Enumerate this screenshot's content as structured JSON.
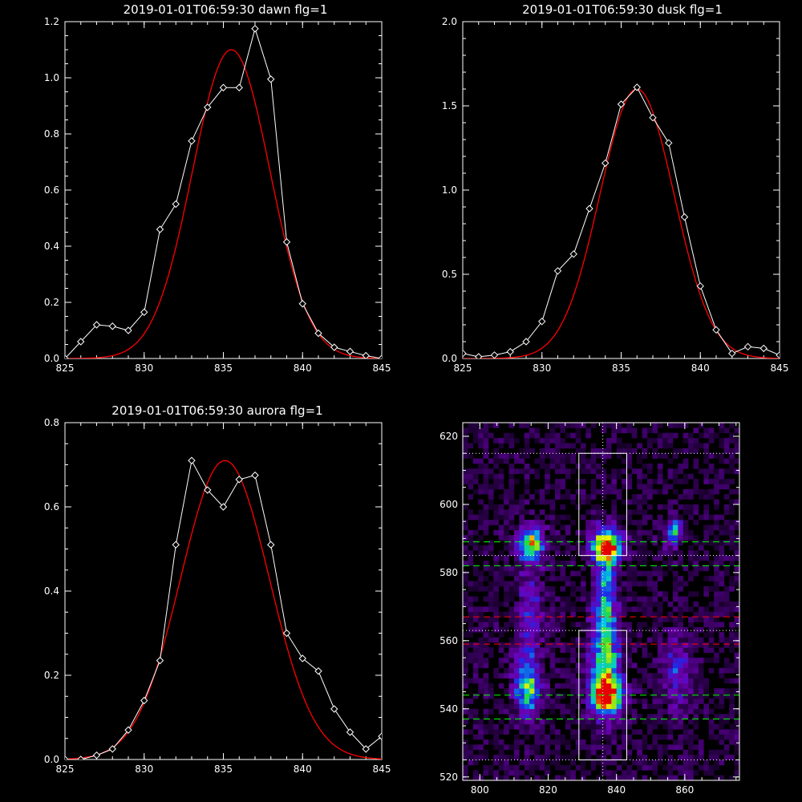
{
  "chart_data": [
    {
      "type": "line",
      "title": "2019-01-01T06:59:30 dawn flg=1",
      "xlim": [
        825,
        845
      ],
      "ylim": [
        0,
        1.2
      ],
      "xticks": [
        "825",
        "830",
        "835",
        "840",
        "845"
      ],
      "yticks": [
        "0.0",
        "0.2",
        "0.4",
        "0.6",
        "0.8",
        "1.0",
        "1.2"
      ],
      "series": [
        {
          "color": "#ffffff",
          "marker": "diamond",
          "x": [
            825,
            826,
            827,
            828,
            829,
            830,
            831,
            832,
            833,
            834,
            835,
            836,
            837,
            838,
            839,
            840,
            841,
            842,
            843,
            844,
            845
          ],
          "y": [
            0.0,
            0.06,
            0.12,
            0.115,
            0.1,
            0.165,
            0.46,
            0.55,
            0.775,
            0.895,
            0.965,
            0.965,
            1.175,
            0.995,
            0.415,
            0.195,
            0.09,
            0.04,
            0.025,
            0.01,
            0.0
          ]
        },
        {
          "color": "#ff0000",
          "fit": {
            "amplitude": 1.1,
            "center": 835.5,
            "sigma": 2.45
          }
        }
      ]
    },
    {
      "type": "line",
      "title": "2019-01-01T06:59:30 dusk flg=1",
      "xlim": [
        825,
        845
      ],
      "ylim": [
        0,
        2.0
      ],
      "xticks": [
        "825",
        "830",
        "835",
        "840",
        "845"
      ],
      "yticks": [
        "0.0",
        "0.5",
        "1.0",
        "1.5",
        "2.0"
      ],
      "series": [
        {
          "color": "#ffffff",
          "marker": "diamond",
          "x": [
            825,
            826,
            827,
            828,
            829,
            830,
            831,
            832,
            833,
            834,
            835,
            836,
            837,
            838,
            839,
            840,
            841,
            842,
            843,
            844,
            845
          ],
          "y": [
            0.03,
            0.01,
            0.02,
            0.04,
            0.1,
            0.22,
            0.52,
            0.62,
            0.89,
            1.16,
            1.51,
            1.61,
            1.43,
            1.28,
            0.84,
            0.43,
            0.17,
            0.03,
            0.07,
            0.06,
            0.02
          ]
        },
        {
          "color": "#ff0000",
          "fit": {
            "amplitude": 1.6,
            "center": 836.0,
            "sigma": 2.35
          }
        }
      ]
    },
    {
      "type": "line",
      "title": "2019-01-01T06:59:30 aurora flg=1",
      "xlim": [
        825,
        845
      ],
      "ylim": [
        0,
        0.8
      ],
      "xticks": [
        "825",
        "830",
        "835",
        "840",
        "845"
      ],
      "yticks": [
        "0.0",
        "0.2",
        "0.4",
        "0.6",
        "0.8"
      ],
      "series": [
        {
          "color": "#ffffff",
          "marker": "diamond",
          "x": [
            825,
            826,
            827,
            828,
            829,
            830,
            831,
            832,
            833,
            834,
            835,
            836,
            837,
            838,
            839,
            840,
            841,
            842,
            843,
            844,
            845
          ],
          "y": [
            0.0,
            0.0,
            0.01,
            0.025,
            0.07,
            0.14,
            0.235,
            0.51,
            0.71,
            0.64,
            0.6,
            0.665,
            0.675,
            0.51,
            0.3,
            0.24,
            0.21,
            0.12,
            0.065,
            0.025,
            0.055
          ]
        },
        {
          "color": "#ff0000",
          "fit": {
            "amplitude": 0.71,
            "center": 835.1,
            "sigma": 2.8
          }
        }
      ]
    },
    {
      "type": "heatmap",
      "title": "",
      "xlim": [
        795,
        876
      ],
      "ylim": [
        519,
        624
      ],
      "xticks": [
        "800",
        "820",
        "840",
        "860"
      ],
      "yticks": [
        "520",
        "540",
        "560",
        "580",
        "600",
        "620"
      ],
      "blobs": [
        {
          "x": 836.5,
          "y": 587.0,
          "sx": 2.8,
          "sy": 3.5,
          "amp": 1.0
        },
        {
          "x": 836.5,
          "y": 543.0,
          "sx": 3.0,
          "sy": 3.5,
          "amp": 0.95
        },
        {
          "x": 836.0,
          "y": 553.0,
          "sx": 3.0,
          "sy": 9.0,
          "amp": 0.6
        },
        {
          "x": 836.0,
          "y": 572.0,
          "sx": 2.2,
          "sy": 10.0,
          "amp": 0.45
        },
        {
          "x": 814.0,
          "y": 588.0,
          "sx": 2.6,
          "sy": 3.2,
          "amp": 0.7
        },
        {
          "x": 813.0,
          "y": 545.0,
          "sx": 2.6,
          "sy": 5.0,
          "amp": 0.55
        },
        {
          "x": 814.0,
          "y": 565.0,
          "sx": 2.5,
          "sy": 14.0,
          "amp": 0.28
        },
        {
          "x": 856.0,
          "y": 591.0,
          "sx": 2.0,
          "sy": 3.0,
          "amp": 0.45
        },
        {
          "x": 857.0,
          "y": 550.0,
          "sx": 3.0,
          "sy": 8.0,
          "amp": 0.3
        }
      ],
      "boxes": [
        {
          "x0": 829,
          "x1": 843,
          "y0": 585,
          "y1": 615
        },
        {
          "x0": 829,
          "x1": 843,
          "y0": 525,
          "y1": 563
        }
      ],
      "vline": {
        "x": 836,
        "style": "dotted",
        "color": "#ffffff"
      },
      "hlines": [
        {
          "y": 615,
          "style": "dotted",
          "color": "#ffffff"
        },
        {
          "y": 585,
          "style": "dotted",
          "color": "#ffffff"
        },
        {
          "y": 589,
          "style": "dashed",
          "color": "#00ff00"
        },
        {
          "y": 582,
          "style": "dashed",
          "color": "#00ff00"
        },
        {
          "y": 567,
          "style": "dashed",
          "color": "#ff0000"
        },
        {
          "y": 563,
          "style": "dotted",
          "color": "#ffffff"
        },
        {
          "y": 559,
          "style": "dashed",
          "color": "#ff0000"
        },
        {
          "y": 544,
          "style": "dashed",
          "color": "#00ff00"
        },
        {
          "y": 537,
          "style": "dashed",
          "color": "#00ff00"
        },
        {
          "y": 525,
          "style": "dotted",
          "color": "#ffffff"
        }
      ]
    }
  ]
}
